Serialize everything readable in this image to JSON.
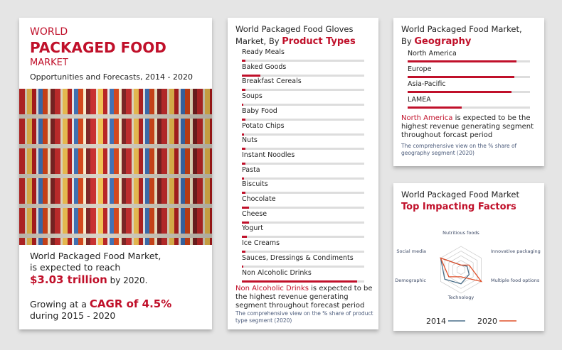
{
  "hero": {
    "line1": "WORLD",
    "line2": "PACKAGED FOOD",
    "line3": "MARKET",
    "subtitle": "Opportunities and Forecasts, 2014 - 2020",
    "reach_a": "World Packaged Food Market,",
    "reach_b": "is expected to reach",
    "value": "$3.03 trillion",
    "value_suffix": " by 2020.",
    "growing": "Growing at a ",
    "cagr": "CAGR of 4.5%",
    "period": "during 2015 - 2020"
  },
  "products": {
    "title_a": "World Packaged Food Gloves",
    "title_b": "Market, By ",
    "title_hl": "Product Types",
    "items": [
      {
        "label": "Ready Meals",
        "share": 0.03
      },
      {
        "label": "Baked Goods",
        "share": 0.15
      },
      {
        "label": "Breakfast Cereals",
        "share": 0.03
      },
      {
        "label": "Soups",
        "share": 0.01
      },
      {
        "label": "Baby Food",
        "share": 0.03
      },
      {
        "label": "Potato Chips",
        "share": 0.02
      },
      {
        "label": "Nuts",
        "share": 0.03
      },
      {
        "label": "Instant Noodles",
        "share": 0.03
      },
      {
        "label": "Pasta",
        "share": 0.02
      },
      {
        "label": "Biscuits",
        "share": 0.03
      },
      {
        "label": "Chocolate",
        "share": 0.06
      },
      {
        "label": "Cheese",
        "share": 0.06
      },
      {
        "label": "Yogurt",
        "share": 0.04
      },
      {
        "label": "Ice Creams",
        "share": 0.03
      },
      {
        "label": "Sauces, Dressings & Condiments",
        "share": 0.01
      },
      {
        "label": "Non Alcoholic Drinks",
        "share": 0.94
      }
    ],
    "note_hl": "Non Alcoholic Drinks",
    "note": " is expected to be the highest revenue generating segment throughout forecast period",
    "caption": "The comprehensive view on the % share of product type segment (2020)"
  },
  "geography": {
    "title_a": "World Packaged Food Market,",
    "title_b": "By ",
    "title_hl": "Geography",
    "items": [
      {
        "label": "North America",
        "share": 0.89
      },
      {
        "label": "Europe",
        "share": 0.87
      },
      {
        "label": "Asia-Pacific",
        "share": 0.85
      },
      {
        "label": "LAMEA",
        "share": 0.44
      }
    ],
    "note_hl": "North America",
    "note": " is expected to be the highest revenue generating segment throughout forcast period",
    "caption": "The comprehensive view on the % share of geography segment (2020)"
  },
  "chart_data": {
    "type": "radar",
    "title": "World Packaged Food Market",
    "subtitle": "Top Impacting Factors",
    "axes": [
      "Nutritious foods",
      "Innovative packaging",
      "Multiple food options",
      "Technology",
      "Demographic",
      "Social media"
    ],
    "range": [
      0,
      5
    ],
    "series": [
      {
        "name": "2014",
        "color": "#4a6f8a",
        "values": [
          1,
          1.5,
          2,
          3,
          4,
          5
        ]
      },
      {
        "name": "2020",
        "color": "#e0502a",
        "values": [
          1,
          2,
          5,
          1.5,
          3,
          5
        ]
      }
    ]
  }
}
